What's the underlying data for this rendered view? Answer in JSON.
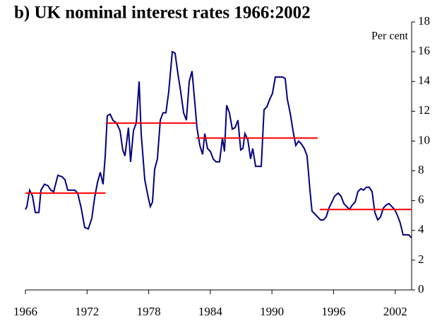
{
  "chart_data": {
    "type": "line",
    "title": "b) UK nominal interest rates 1966:2002",
    "y_label": "Per cent",
    "xlim": [
      1966,
      2003.6
    ],
    "xticks": [
      1966,
      1972,
      1978,
      1984,
      1990,
      1996,
      2002
    ],
    "ylim": [
      0,
      18
    ],
    "yticks": [
      0,
      2,
      4,
      6,
      8,
      10,
      12,
      14,
      16,
      18
    ],
    "series": [
      {
        "name": "UK nominal interest rate",
        "color": "#00007f",
        "x": [
          1966.0,
          1966.14,
          1966.41,
          1966.69,
          1966.96,
          1967.31,
          1967.51,
          1967.86,
          1968.2,
          1968.47,
          1968.75,
          1969.16,
          1969.57,
          1969.85,
          1970.12,
          1970.4,
          1970.81,
          1971.09,
          1971.43,
          1971.77,
          1972.12,
          1972.46,
          1972.74,
          1973.01,
          1973.29,
          1973.56,
          1973.77,
          1973.97,
          1974.25,
          1974.52,
          1974.87,
          1975.21,
          1975.48,
          1975.69,
          1976.03,
          1976.24,
          1976.52,
          1976.79,
          1977.07,
          1977.27,
          1977.62,
          1977.96,
          1978.16,
          1978.37,
          1978.58,
          1978.85,
          1979.13,
          1979.4,
          1979.68,
          1979.95,
          1980.3,
          1980.57,
          1980.85,
          1981.12,
          1981.4,
          1981.67,
          1981.95,
          1982.22,
          1982.49,
          1982.7,
          1982.98,
          1983.25,
          1983.46,
          1983.73,
          1984.01,
          1984.28,
          1984.56,
          1984.9,
          1985.18,
          1985.38,
          1985.59,
          1985.86,
          1986.14,
          1986.41,
          1986.69,
          1986.96,
          1987.17,
          1987.37,
          1987.65,
          1987.92,
          1988.13,
          1988.41,
          1988.68,
          1988.96,
          1989.23,
          1989.51,
          1989.78,
          1990.05,
          1990.33,
          1990.67,
          1991.02,
          1991.29,
          1991.5,
          1991.77,
          1992.05,
          1992.32,
          1992.6,
          1992.87,
          1993.15,
          1993.42,
          1993.7,
          1993.9,
          1994.18,
          1994.45,
          1994.73,
          1995.0,
          1995.28,
          1995.55,
          1995.83,
          1996.1,
          1996.45,
          1996.72,
          1997.0,
          1997.27,
          1997.55,
          1997.82,
          1998.1,
          1998.37,
          1998.65,
          1998.92,
          1999.2,
          1999.47,
          1999.75,
          2000.02,
          2000.3,
          2000.57,
          2000.85,
          2001.12,
          2001.4,
          2001.67,
          2001.95,
          2002.22,
          2002.49,
          2002.77,
          2003.04,
          2003.32,
          2003.59
        ],
        "values": [
          5.4,
          5.6,
          6.7,
          6.3,
          5.2,
          5.2,
          6.7,
          7.1,
          7.0,
          6.7,
          6.6,
          7.7,
          7.6,
          7.4,
          6.7,
          6.7,
          6.7,
          6.5,
          5.5,
          4.2,
          4.1,
          4.8,
          6.2,
          7.2,
          7.9,
          7.1,
          9.0,
          11.7,
          11.8,
          11.4,
          11.2,
          10.7,
          9.4,
          9.0,
          10.9,
          8.6,
          10.7,
          11.2,
          14.0,
          10.5,
          7.4,
          6.2,
          5.6,
          5.9,
          8.1,
          8.8,
          11.4,
          11.9,
          11.9,
          13.3,
          16.0,
          15.9,
          14.5,
          13.3,
          11.9,
          11.4,
          14.0,
          14.7,
          12.6,
          10.9,
          9.7,
          9.1,
          10.5,
          9.5,
          9.3,
          8.8,
          8.6,
          8.6,
          10.2,
          9.3,
          12.4,
          11.9,
          10.8,
          10.9,
          11.4,
          9.4,
          9.5,
          10.5,
          10.1,
          8.8,
          9.5,
          8.3,
          8.3,
          8.3,
          12.1,
          12.3,
          12.8,
          13.2,
          14.3,
          14.3,
          14.3,
          14.2,
          12.8,
          11.9,
          10.7,
          9.7,
          10.0,
          9.8,
          9.5,
          9.0,
          6.7,
          5.3,
          5.1,
          4.9,
          4.7,
          4.7,
          4.9,
          5.5,
          5.9,
          6.3,
          6.5,
          6.3,
          5.8,
          5.6,
          5.4,
          5.7,
          5.9,
          6.6,
          6.8,
          6.7,
          6.9,
          6.9,
          6.6,
          5.2,
          4.7,
          4.9,
          5.5,
          5.7,
          5.8,
          5.6,
          5.4,
          5.0,
          4.5,
          3.7,
          3.7,
          3.7,
          3.5
        ]
      }
    ],
    "averages": {
      "color": "#ff0000",
      "periods": [
        {
          "x": [
            1966.0,
            1973.8
          ],
          "value": 6.5
        },
        {
          "x": [
            1973.84,
            1982.63
          ],
          "value": 11.2
        },
        {
          "x": [
            1982.63,
            1994.45
          ],
          "value": 10.2
        },
        {
          "x": [
            1994.66,
            2003.6
          ],
          "value": 5.4
        }
      ]
    }
  }
}
